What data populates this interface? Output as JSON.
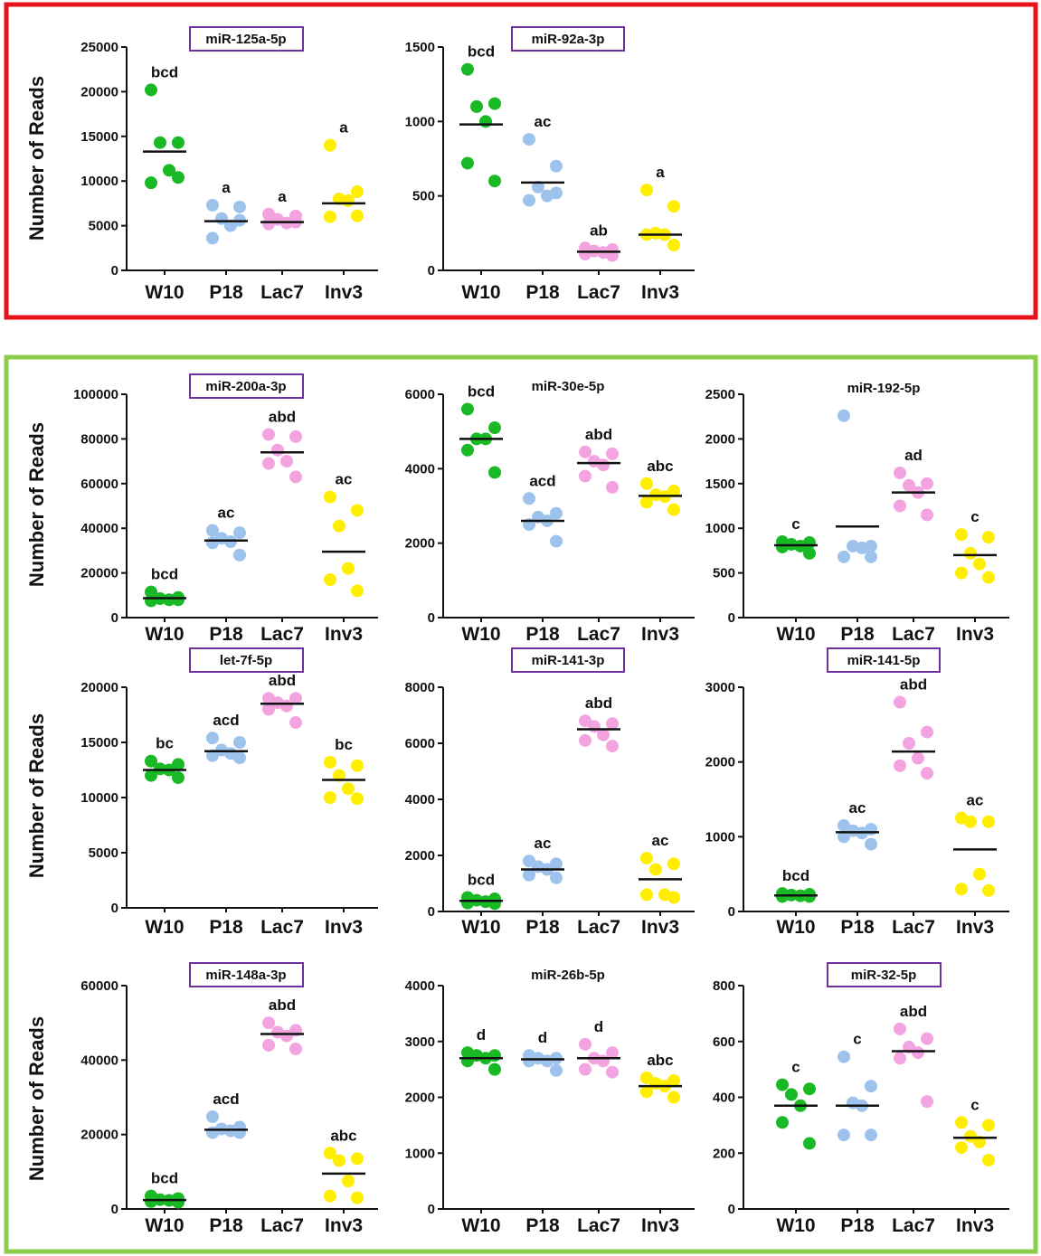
{
  "groups": [
    {
      "name": "top-group",
      "frame_color": "#e8121a"
    },
    {
      "name": "bottom-group",
      "frame_color": "#8ccc4a"
    }
  ],
  "colors": {
    "W10": "#19b925",
    "P18": "#9dc3ec",
    "Lac7": "#f3a4e0",
    "Inv3": "#ffee00",
    "title_box": "#7030a0"
  },
  "y_axis_label": "Number of Reads",
  "categories": [
    "W10",
    "P18",
    "Lac7",
    "Inv3"
  ],
  "chart_data": [
    {
      "type": "scatter",
      "title": "miR-125a-5p",
      "boxed": true,
      "ylabel": "Number of Reads",
      "ylim": [
        0,
        25000
      ],
      "yticks": [
        0,
        5000,
        10000,
        15000,
        20000,
        25000
      ],
      "categories": [
        "W10",
        "P18",
        "Lac7",
        "Inv3"
      ],
      "series": [
        {
          "category": "W10",
          "points": [
            20200,
            14300,
            14300,
            11200,
            9800,
            10400
          ],
          "mean": 13300,
          "letters": "bcd"
        },
        {
          "category": "P18",
          "points": [
            7300,
            7100,
            5800,
            5000,
            3600,
            5600
          ],
          "mean": 5500,
          "letters": "a"
        },
        {
          "category": "Lac7",
          "points": [
            6300,
            6100,
            5700,
            5300,
            5200,
            5400
          ],
          "mean": 5400,
          "letters": "a"
        },
        {
          "category": "Inv3",
          "points": [
            14000,
            8800,
            8000,
            7800,
            6000,
            6100
          ],
          "mean": 7500,
          "letters": "a"
        }
      ]
    },
    {
      "type": "scatter",
      "title": "miR-92a-3p",
      "boxed": true,
      "ylabel": "",
      "ylim": [
        0,
        1500
      ],
      "yticks": [
        0,
        500,
        1000,
        1500
      ],
      "categories": [
        "W10",
        "P18",
        "Lac7",
        "Inv3"
      ],
      "series": [
        {
          "category": "W10",
          "points": [
            1350,
            1120,
            1100,
            1000,
            720,
            600
          ],
          "mean": 980,
          "letters": "bcd"
        },
        {
          "category": "P18",
          "points": [
            880,
            700,
            560,
            500,
            470,
            520
          ],
          "mean": 590,
          "letters": "ac"
        },
        {
          "category": "Lac7",
          "points": [
            150,
            140,
            130,
            120,
            110,
            100
          ],
          "mean": 125,
          "letters": "ab"
        },
        {
          "category": "Inv3",
          "points": [
            540,
            430,
            250,
            240,
            240,
            170
          ],
          "mean": 240,
          "letters": "a"
        }
      ]
    },
    {
      "type": "scatter",
      "title": "miR-200a-3p",
      "boxed": true,
      "ylabel": "Number of Reads",
      "ylim": [
        0,
        100000
      ],
      "yticks": [
        0,
        20000,
        40000,
        60000,
        80000,
        100000
      ],
      "categories": [
        "W10",
        "P18",
        "Lac7",
        "Inv3"
      ],
      "series": [
        {
          "category": "W10",
          "points": [
            11500,
            9000,
            8500,
            8000,
            7500,
            8000
          ],
          "mean": 8700,
          "letters": "bcd"
        },
        {
          "category": "P18",
          "points": [
            39000,
            38000,
            35500,
            34000,
            33500,
            28000
          ],
          "mean": 34500,
          "letters": "ac"
        },
        {
          "category": "Lac7",
          "points": [
            82000,
            81000,
            75000,
            70000,
            69000,
            63000
          ],
          "mean": 74000,
          "letters": "abd"
        },
        {
          "category": "Inv3",
          "points": [
            54000,
            48000,
            41000,
            22000,
            17000,
            12000
          ],
          "mean": 29500,
          "letters": "ac"
        }
      ]
    },
    {
      "type": "scatter",
      "title": "miR-30e-5p",
      "boxed": false,
      "ylabel": "",
      "ylim": [
        0,
        6000
      ],
      "yticks": [
        0,
        2000,
        4000,
        6000
      ],
      "categories": [
        "W10",
        "P18",
        "Lac7",
        "Inv3"
      ],
      "series": [
        {
          "category": "W10",
          "points": [
            5600,
            5100,
            4800,
            4800,
            4500,
            3900
          ],
          "mean": 4800,
          "letters": "bcd"
        },
        {
          "category": "P18",
          "points": [
            3200,
            2800,
            2700,
            2600,
            2500,
            2050
          ],
          "mean": 2600,
          "letters": "acd"
        },
        {
          "category": "Lac7",
          "points": [
            4450,
            4400,
            4200,
            4100,
            3800,
            3500
          ],
          "mean": 4150,
          "letters": "abd"
        },
        {
          "category": "Inv3",
          "points": [
            3600,
            3400,
            3300,
            3250,
            3100,
            2900
          ],
          "mean": 3270,
          "letters": "abc"
        }
      ]
    },
    {
      "type": "scatter",
      "title": "miR-192-5p",
      "boxed": false,
      "ylabel": "",
      "ylim": [
        0,
        2500
      ],
      "yticks": [
        0,
        500,
        1000,
        1500,
        2000,
        2500
      ],
      "categories": [
        "W10",
        "P18",
        "Lac7",
        "Inv3"
      ],
      "series": [
        {
          "category": "W10",
          "points": [
            850,
            840,
            820,
            800,
            790,
            720
          ],
          "mean": 810,
          "letters": "c"
        },
        {
          "category": "P18",
          "points": [
            2260,
            800,
            800,
            780,
            680,
            680
          ],
          "mean": 1020,
          "letters": ""
        },
        {
          "category": "Lac7",
          "points": [
            1620,
            1500,
            1480,
            1400,
            1250,
            1150
          ],
          "mean": 1400,
          "letters": "ad"
        },
        {
          "category": "Inv3",
          "points": [
            930,
            900,
            720,
            600,
            500,
            450
          ],
          "mean": 700,
          "letters": "c"
        }
      ]
    },
    {
      "type": "scatter",
      "title": "let-7f-5p",
      "boxed": true,
      "ylabel": "Number of Reads",
      "ylim": [
        0,
        20000
      ],
      "yticks": [
        0,
        5000,
        10000,
        15000,
        20000
      ],
      "categories": [
        "W10",
        "P18",
        "Lac7",
        "Inv3"
      ],
      "series": [
        {
          "category": "W10",
          "points": [
            13300,
            13000,
            12600,
            12500,
            12000,
            11800
          ],
          "mean": 12500,
          "letters": "bc"
        },
        {
          "category": "P18",
          "points": [
            15400,
            15000,
            14300,
            14000,
            13800,
            13600
          ],
          "mean": 14200,
          "letters": "acd"
        },
        {
          "category": "Lac7",
          "points": [
            19000,
            19000,
            18600,
            18300,
            18000,
            16800
          ],
          "mean": 18500,
          "letters": "abd"
        },
        {
          "category": "Inv3",
          "points": [
            13200,
            12900,
            12000,
            10800,
            10000,
            9900
          ],
          "mean": 11600,
          "letters": "bc"
        }
      ]
    },
    {
      "type": "scatter",
      "title": "miR-141-3p",
      "boxed": true,
      "ylabel": "",
      "ylim": [
        0,
        8000
      ],
      "yticks": [
        0,
        2000,
        4000,
        6000,
        8000
      ],
      "categories": [
        "W10",
        "P18",
        "Lac7",
        "Inv3"
      ],
      "series": [
        {
          "category": "W10",
          "points": [
            500,
            450,
            400,
            350,
            300,
            280
          ],
          "mean": 380,
          "letters": "bcd"
        },
        {
          "category": "P18",
          "points": [
            1800,
            1700,
            1600,
            1500,
            1300,
            1200
          ],
          "mean": 1500,
          "letters": "ac"
        },
        {
          "category": "Lac7",
          "points": [
            6800,
            6700,
            6600,
            6300,
            6100,
            5900
          ],
          "mean": 6500,
          "letters": "abd"
        },
        {
          "category": "Inv3",
          "points": [
            1900,
            1700,
            1500,
            600,
            600,
            500
          ],
          "mean": 1150,
          "letters": "ac"
        }
      ]
    },
    {
      "type": "scatter",
      "title": "miR-141-5p",
      "boxed": true,
      "ylabel": "",
      "ylim": [
        0,
        3000
      ],
      "yticks": [
        0,
        1000,
        2000,
        3000
      ],
      "categories": [
        "W10",
        "P18",
        "Lac7",
        "Inv3"
      ],
      "series": [
        {
          "category": "W10",
          "points": [
            240,
            230,
            220,
            210,
            200,
            200
          ],
          "mean": 215,
          "letters": "bcd"
        },
        {
          "category": "P18",
          "points": [
            1150,
            1100,
            1080,
            1050,
            1000,
            900
          ],
          "mean": 1060,
          "letters": "ac"
        },
        {
          "category": "Lac7",
          "points": [
            2800,
            2400,
            2250,
            2050,
            1950,
            1850
          ],
          "mean": 2140,
          "letters": "abd"
        },
        {
          "category": "Inv3",
          "points": [
            1250,
            1200,
            1200,
            500,
            300,
            280
          ],
          "mean": 830,
          "letters": "ac"
        }
      ]
    },
    {
      "type": "scatter",
      "title": "miR-148a-3p",
      "boxed": true,
      "ylabel": "Number of Reads",
      "ylim": [
        0,
        60000
      ],
      "yticks": [
        0,
        20000,
        40000,
        60000
      ],
      "categories": [
        "W10",
        "P18",
        "Lac7",
        "Inv3"
      ],
      "series": [
        {
          "category": "W10",
          "points": [
            3500,
            2800,
            2500,
            2300,
            2000,
            1800
          ],
          "mean": 2400,
          "letters": "bcd"
        },
        {
          "category": "P18",
          "points": [
            24800,
            22000,
            21500,
            21000,
            20500,
            20500
          ],
          "mean": 21300,
          "letters": "acd"
        },
        {
          "category": "Lac7",
          "points": [
            50000,
            48000,
            47500,
            46500,
            44000,
            43000
          ],
          "mean": 47000,
          "letters": "abd"
        },
        {
          "category": "Inv3",
          "points": [
            15000,
            13500,
            13000,
            7500,
            3500,
            3000
          ],
          "mean": 9500,
          "letters": "abc"
        }
      ]
    },
    {
      "type": "scatter",
      "title": "miR-26b-5p",
      "boxed": false,
      "ylabel": "",
      "ylim": [
        0,
        4000
      ],
      "yticks": [
        0,
        1000,
        2000,
        3000,
        4000
      ],
      "categories": [
        "W10",
        "P18",
        "Lac7",
        "Inv3"
      ],
      "series": [
        {
          "category": "W10",
          "points": [
            2800,
            2750,
            2750,
            2700,
            2650,
            2500
          ],
          "mean": 2700,
          "letters": "d"
        },
        {
          "category": "P18",
          "points": [
            2750,
            2700,
            2700,
            2650,
            2650,
            2480
          ],
          "mean": 2680,
          "letters": "d"
        },
        {
          "category": "Lac7",
          "points": [
            2950,
            2800,
            2700,
            2650,
            2500,
            2450
          ],
          "mean": 2700,
          "letters": "d"
        },
        {
          "category": "Inv3",
          "points": [
            2350,
            2300,
            2250,
            2200,
            2100,
            2000
          ],
          "mean": 2200,
          "letters": "abc"
        }
      ]
    },
    {
      "type": "scatter",
      "title": "miR-32-5p",
      "boxed": true,
      "ylabel": "",
      "ylim": [
        0,
        800
      ],
      "yticks": [
        0,
        200,
        400,
        600,
        800
      ],
      "categories": [
        "W10",
        "P18",
        "Lac7",
        "Inv3"
      ],
      "series": [
        {
          "category": "W10",
          "points": [
            445,
            430,
            410,
            370,
            310,
            235
          ],
          "mean": 370,
          "letters": "c"
        },
        {
          "category": "P18",
          "points": [
            545,
            440,
            380,
            370,
            265,
            265
          ],
          "mean": 370,
          "letters": "c"
        },
        {
          "category": "Lac7",
          "points": [
            645,
            610,
            580,
            560,
            540,
            385
          ],
          "mean": 565,
          "letters": "abd"
        },
        {
          "category": "Inv3",
          "points": [
            310,
            300,
            260,
            240,
            220,
            175
          ],
          "mean": 255,
          "letters": "c"
        }
      ]
    }
  ]
}
